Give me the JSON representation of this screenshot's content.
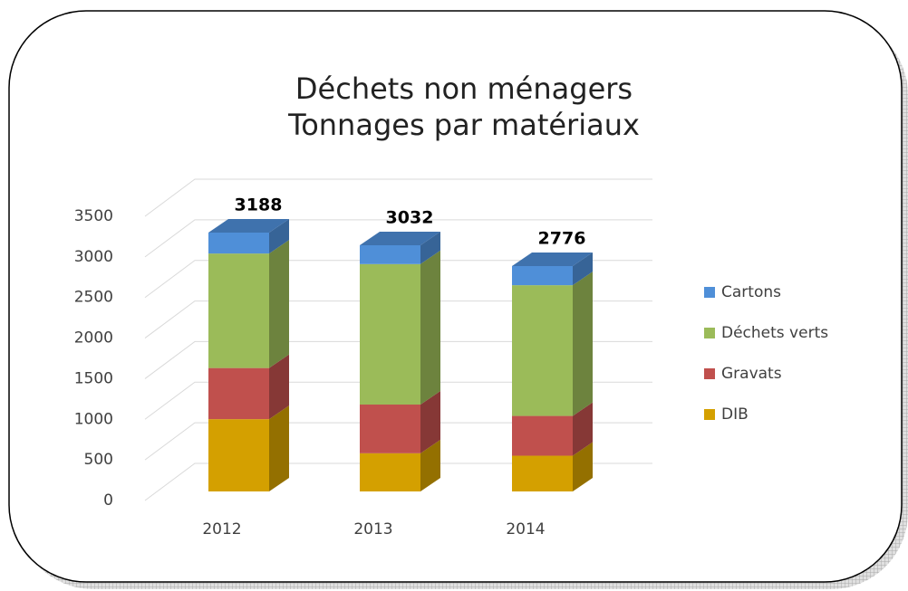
{
  "chart_data": {
    "type": "stacked-bar-3d",
    "title": [
      "Déchets non ménagers",
      "Tonnages par matériaux"
    ],
    "categories": [
      "2012",
      "2013",
      "2014"
    ],
    "series": [
      {
        "name": "DIB",
        "color": "#d4a000",
        "values": [
          890,
          470,
          440
        ]
      },
      {
        "name": "Gravats",
        "color": "#c0504d",
        "values": [
          630,
          600,
          490
        ]
      },
      {
        "name": "Déchets verts",
        "color": "#9bbb59",
        "values": [
          1410,
          1730,
          1610
        ]
      },
      {
        "name": "Cartons",
        "color": "#4f8fd8",
        "values": [
          258,
          232,
          236
        ]
      }
    ],
    "total_labels": [
      3188,
      3032,
      2776
    ],
    "ylim": [
      0,
      3500
    ],
    "yticks": [
      0,
      500,
      1000,
      1500,
      2000,
      2500,
      3000,
      3500
    ],
    "grid": true,
    "legend": "right"
  }
}
